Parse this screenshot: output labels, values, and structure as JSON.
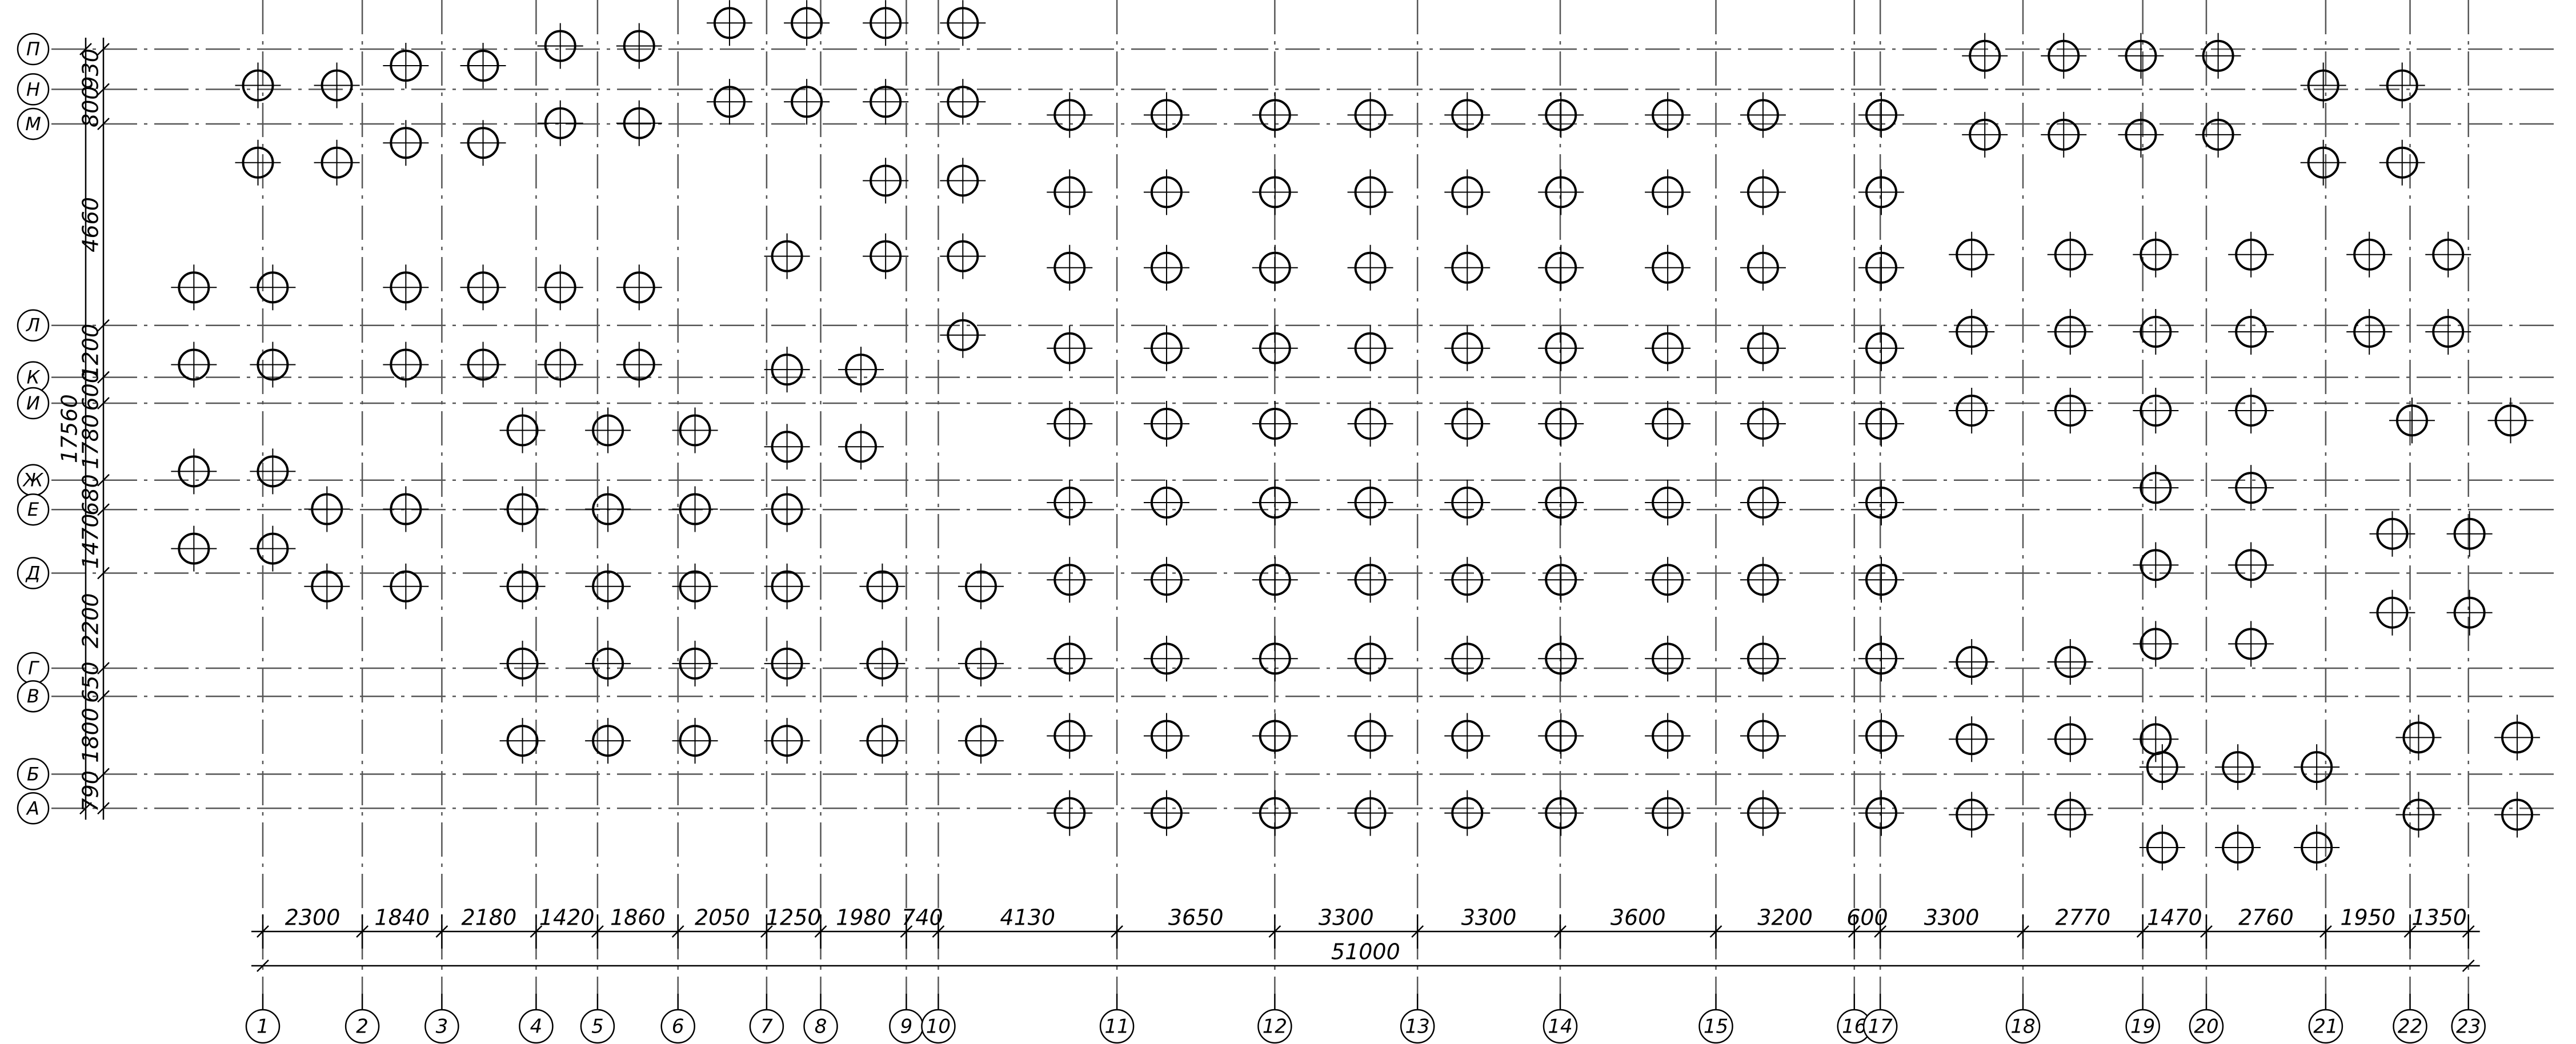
{
  "columns": {
    "labels": [
      "1",
      "2",
      "3",
      "4",
      "5",
      "6",
      "7",
      "8",
      "9",
      "10",
      "11",
      "12",
      "13",
      "14",
      "15",
      "16",
      "17",
      "18",
      "19",
      "20",
      "21",
      "22",
      "23"
    ],
    "spacings": [
      2300,
      1840,
      2180,
      1420,
      1860,
      2050,
      1250,
      1980,
      740,
      4130,
      3650,
      3300,
      3300,
      3600,
      3200,
      600,
      3300,
      2770,
      1470,
      2760,
      1950,
      1350
    ],
    "total": 51000
  },
  "rows": {
    "labels": [
      "П",
      "Н",
      "М",
      "Л",
      "К",
      "И",
      "Ж",
      "Е",
      "Д",
      "Г",
      "В",
      "Б",
      "А"
    ],
    "spacings": [
      930,
      800,
      4660,
      1200,
      600,
      1780,
      680,
      1470,
      2200,
      650,
      1800,
      790
    ],
    "total": 17560
  }
}
